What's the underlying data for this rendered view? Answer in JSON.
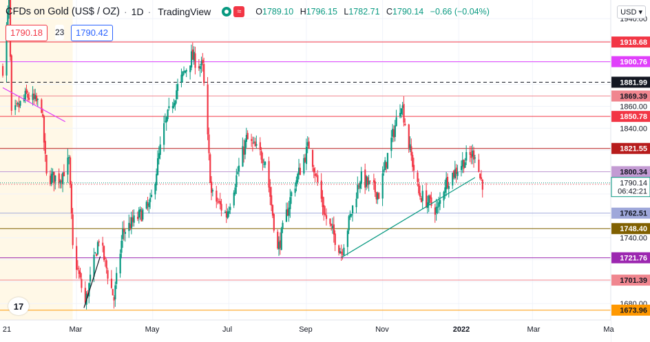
{
  "header": {
    "symbol": "CFDs on Gold (US$ / OZ)",
    "interval": "1D",
    "platform": "TradingView",
    "open_label": "O",
    "open": "1789.10",
    "high_label": "H",
    "high": "1796.15",
    "low_label": "L",
    "low": "1782.71",
    "close_label": "C",
    "close": "1790.14",
    "change": "−0.66 (−0.04%)"
  },
  "trade": {
    "sell": "1790.18",
    "spread": "23",
    "buy": "1790.42"
  },
  "currency_button": "USD",
  "colors": {
    "up": "#089981",
    "down": "#f23645",
    "trendline": "#089981"
  },
  "chart_data": {
    "type": "candlestick",
    "y_axis": {
      "range": [
        1665,
        1952
      ],
      "ticks": [
        1680,
        1700,
        1720,
        1740,
        1760,
        1780,
        1800,
        1820,
        1840,
        1860,
        1880,
        1900,
        1920,
        1940
      ]
    },
    "x_axis": {
      "start": "2021-01-01",
      "end": "2022-05-01",
      "ticks": [
        "21",
        "Mar",
        "May",
        "Jul",
        "Sep",
        "Nov",
        "2022",
        "Mar",
        "Ma"
      ]
    },
    "horizontal_levels": [
      {
        "label": "1918.68",
        "value": 1918.68,
        "color": "#f23645",
        "style": "solid"
      },
      {
        "label": "1900.76",
        "value": 1900.76,
        "color": "#e040fb",
        "style": "solid"
      },
      {
        "label": "1881.99",
        "value": 1881.99,
        "color": "#131722",
        "style": "dashed"
      },
      {
        "label": "1869.39",
        "value": 1869.39,
        "color": "#f0868f",
        "style": "solid"
      },
      {
        "label": "1850.78",
        "value": 1850.78,
        "color": "#f23645",
        "style": "solid"
      },
      {
        "label": "1821.55",
        "value": 1821.55,
        "color": "#b71c1c",
        "style": "solid"
      },
      {
        "label": "1800.34",
        "value": 1800.34,
        "color": "#c39bd3",
        "style": "solid"
      },
      {
        "label": "1788.90",
        "value": 1788.9,
        "color": "#f0868f",
        "style": "dotted"
      },
      {
        "label": "1762.51",
        "value": 1762.51,
        "color": "#9fa8da",
        "style": "solid"
      },
      {
        "label": "1748.40",
        "value": 1748.4,
        "color": "#806000",
        "style": "solid"
      },
      {
        "label": "1721.76",
        "value": 1721.76,
        "color": "#9c27b0",
        "style": "solid"
      },
      {
        "label": "1701.39",
        "value": 1701.39,
        "color": "#f0868f",
        "style": "solid"
      },
      {
        "label": "1673.96",
        "value": 1673.96,
        "color": "#ff9800",
        "style": "solid"
      }
    ],
    "last_price": {
      "value": 1790.14,
      "label": "1790.14",
      "countdown": "06:42:21"
    },
    "trendlines": [
      {
        "from": [
          "2021-01-01",
          1877
        ],
        "to": [
          "2021-02-20",
          1846
        ],
        "color": "#e040fb"
      },
      {
        "from": [
          "2021-03-07",
          1676
        ],
        "to": [
          "2021-03-20",
          1723
        ],
        "color": "#131722"
      },
      {
        "from": [
          "2021-09-29",
          1722
        ],
        "to": [
          "2022-01-14",
          1795
        ],
        "color": "#089981"
      }
    ],
    "anchors": [
      [
        "2021-01-01",
        1895
      ],
      [
        "2021-01-06",
        1955
      ],
      [
        "2021-01-08",
        1850
      ],
      [
        "2021-01-20",
        1870
      ],
      [
        "2021-02-01",
        1860
      ],
      [
        "2021-02-05",
        1795
      ],
      [
        "2021-02-16",
        1795
      ],
      [
        "2021-02-23",
        1810
      ],
      [
        "2021-02-26",
        1730
      ],
      [
        "2021-03-08",
        1680
      ],
      [
        "2021-03-19",
        1740
      ],
      [
        "2021-03-31",
        1684
      ],
      [
        "2021-04-07",
        1745
      ],
      [
        "2021-04-29",
        1770
      ],
      [
        "2021-05-10",
        1840
      ],
      [
        "2021-05-20",
        1875
      ],
      [
        "2021-06-01",
        1905
      ],
      [
        "2021-06-10",
        1895
      ],
      [
        "2021-06-17",
        1780
      ],
      [
        "2021-06-29",
        1761
      ],
      [
        "2021-07-15",
        1830
      ],
      [
        "2021-07-30",
        1812
      ],
      [
        "2021-08-09",
        1728
      ],
      [
        "2021-08-20",
        1780
      ],
      [
        "2021-09-03",
        1825
      ],
      [
        "2021-09-16",
        1760
      ],
      [
        "2021-09-29",
        1727
      ],
      [
        "2021-10-14",
        1795
      ],
      [
        "2021-10-29",
        1780
      ],
      [
        "2021-11-05",
        1815
      ],
      [
        "2021-11-16",
        1865
      ],
      [
        "2021-11-22",
        1825
      ],
      [
        "2021-11-30",
        1780
      ],
      [
        "2021-12-15",
        1765
      ],
      [
        "2021-12-21",
        1790
      ],
      [
        "2022-01-05",
        1810
      ],
      [
        "2022-01-14",
        1818
      ],
      [
        "2022-01-18",
        1795
      ],
      [
        "2022-01-20",
        1790.14
      ]
    ]
  }
}
